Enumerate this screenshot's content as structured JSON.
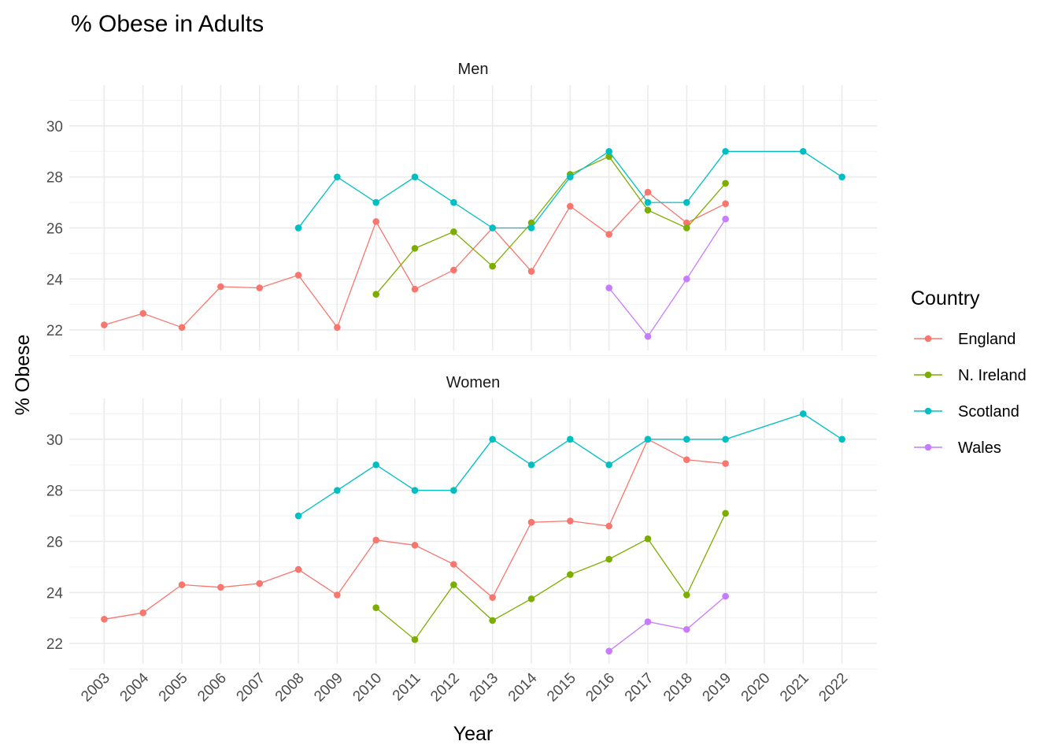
{
  "chart_data": {
    "type": "line",
    "title": "% Obese in Adults",
    "xlabel": "Year",
    "ylabel": "% Obese",
    "x_ticks": [
      "2003",
      "2004",
      "2005",
      "2006",
      "2007",
      "2008",
      "2009",
      "2010",
      "2011",
      "2012",
      "2013",
      "2014",
      "2015",
      "2016",
      "2017",
      "2018",
      "2019",
      "2020",
      "2021",
      "2022"
    ],
    "y_ticks": [
      22,
      24,
      26,
      28,
      30
    ],
    "ylim": [
      21.2,
      31.6
    ],
    "xlim": [
      2002.1,
      2022.9
    ],
    "grid": true,
    "legend": {
      "title": "Country",
      "placement": "right",
      "entries": [
        "England",
        "N. Ireland",
        "Scotland",
        "Wales"
      ]
    },
    "colors": {
      "England": "#F8766D",
      "N. Ireland": "#7CAE00",
      "Scotland": "#00BFC4",
      "Wales": "#C77CFF"
    },
    "panels": [
      {
        "label": "Men",
        "series": [
          {
            "name": "England",
            "x": [
              2003,
              2004,
              2005,
              2006,
              2007,
              2008,
              2009,
              2010,
              2011,
              2012,
              2013,
              2014,
              2015,
              2016,
              2017,
              2018,
              2019
            ],
            "y": [
              22.2,
              22.65,
              22.1,
              23.7,
              23.65,
              24.15,
              22.1,
              26.25,
              23.6,
              24.35,
              26.0,
              24.3,
              26.85,
              25.75,
              27.4,
              26.2,
              26.95
            ]
          },
          {
            "name": "N. Ireland",
            "x": [
              2010,
              2011,
              2012,
              2013,
              2014,
              2015,
              2016,
              2017,
              2018,
              2019
            ],
            "y": [
              23.4,
              25.2,
              25.85,
              24.5,
              26.2,
              28.1,
              28.8,
              26.7,
              26.0,
              27.75
            ]
          },
          {
            "name": "Scotland",
            "x": [
              2008,
              2009,
              2010,
              2011,
              2012,
              2013,
              2014,
              2015,
              2016,
              2017,
              2018,
              2019,
              2021,
              2022
            ],
            "y": [
              26,
              28,
              27,
              28,
              27,
              26,
              26,
              28,
              29,
              27,
              27,
              29,
              29,
              28
            ]
          },
          {
            "name": "Wales",
            "x": [
              2016,
              2017,
              2018,
              2019
            ],
            "y": [
              23.65,
              21.75,
              24.0,
              26.35
            ]
          }
        ]
      },
      {
        "label": "Women",
        "series": [
          {
            "name": "England",
            "x": [
              2003,
              2004,
              2005,
              2006,
              2007,
              2008,
              2009,
              2010,
              2011,
              2012,
              2013,
              2014,
              2015,
              2016,
              2017,
              2018,
              2019
            ],
            "y": [
              22.95,
              23.2,
              24.3,
              24.2,
              24.35,
              24.9,
              23.9,
              26.05,
              25.85,
              25.1,
              23.8,
              26.75,
              26.8,
              26.6,
              30.0,
              29.2,
              29.05
            ]
          },
          {
            "name": "N. Ireland",
            "x": [
              2010,
              2011,
              2012,
              2013,
              2014,
              2015,
              2016,
              2017,
              2018,
              2019
            ],
            "y": [
              23.4,
              22.15,
              24.3,
              22.9,
              23.75,
              24.7,
              25.3,
              26.1,
              23.9,
              27.1
            ]
          },
          {
            "name": "Scotland",
            "x": [
              2008,
              2009,
              2010,
              2011,
              2012,
              2013,
              2014,
              2015,
              2016,
              2017,
              2018,
              2019,
              2021,
              2022
            ],
            "y": [
              27,
              28,
              29,
              28,
              28,
              30,
              29,
              30,
              29,
              30,
              30,
              30,
              31,
              30
            ]
          },
          {
            "name": "Wales",
            "x": [
              2016,
              2017,
              2018,
              2019
            ],
            "y": [
              21.7,
              22.85,
              22.55,
              23.85
            ]
          }
        ]
      }
    ]
  }
}
